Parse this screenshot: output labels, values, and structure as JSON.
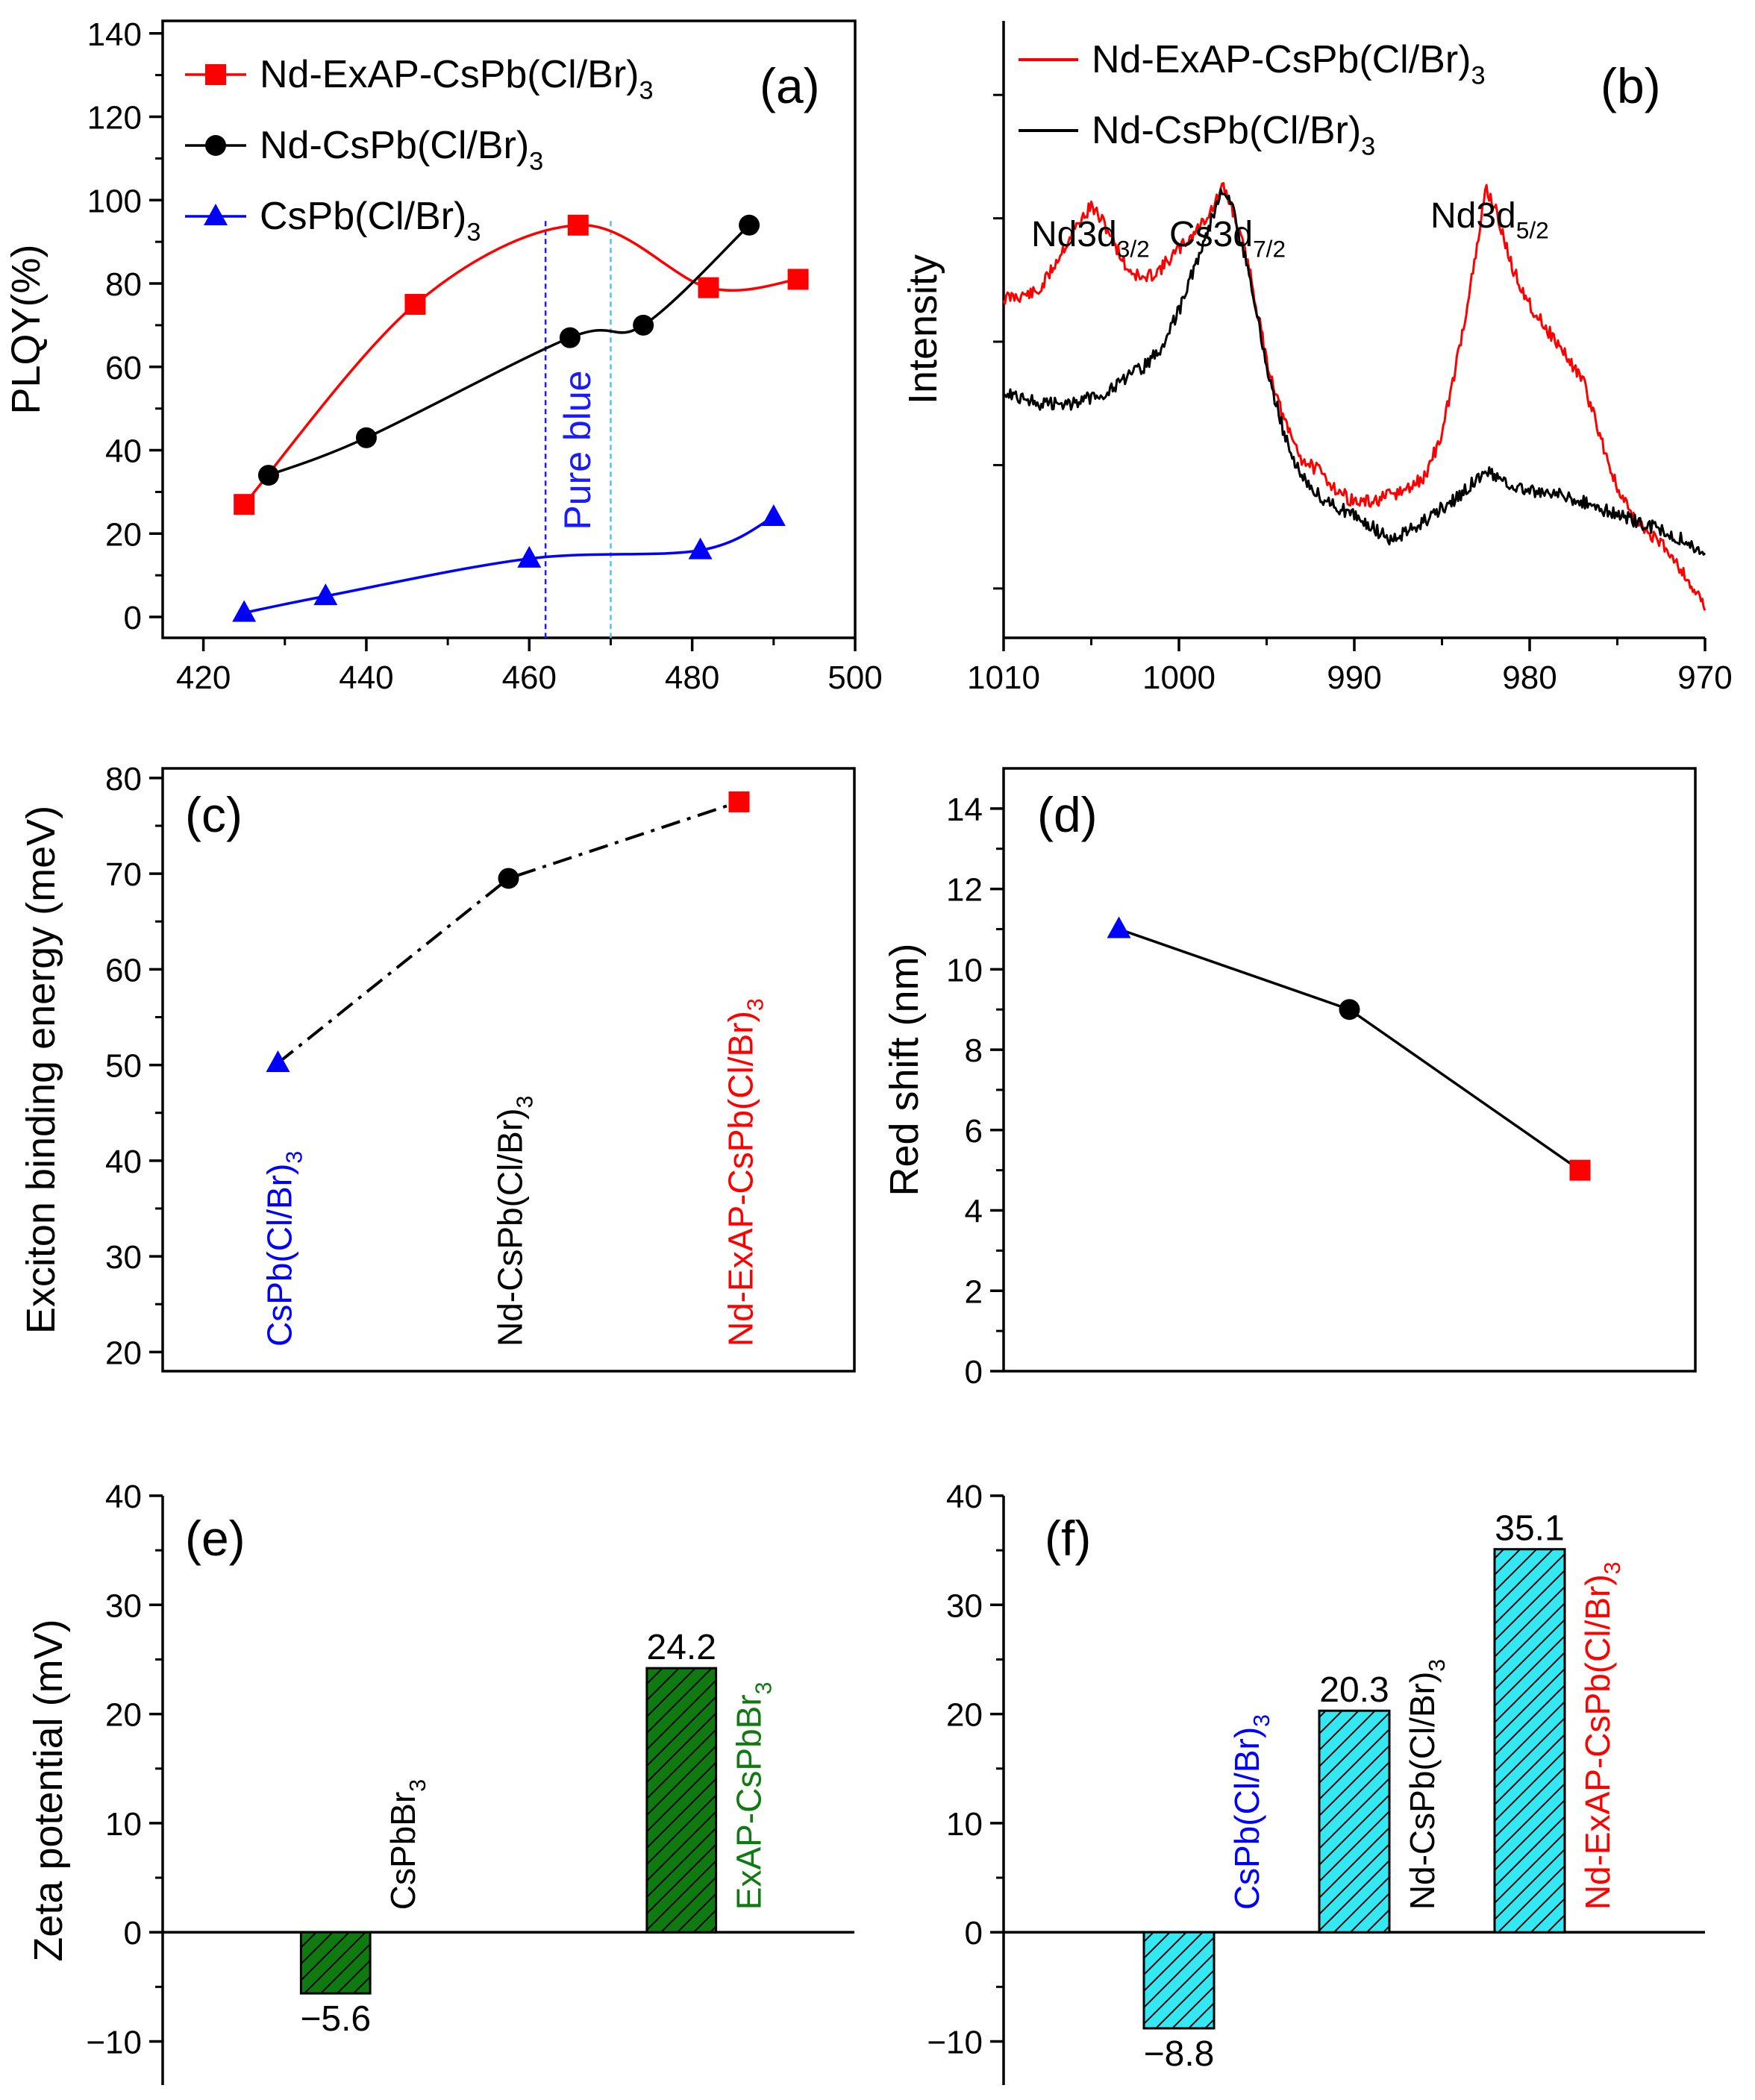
{
  "figure": {
    "panels": [
      "(a)",
      "(b)",
      "(c)",
      "(d)",
      "(e)",
      "(f)"
    ]
  },
  "chart_data": [
    {
      "id": "a",
      "type": "line",
      "panel_label": "(a)",
      "ylabel": "PLQY(%)",
      "xlabel": "",
      "xlim": [
        415,
        500
      ],
      "ylim": [
        -5,
        143
      ],
      "xticks": [
        420,
        440,
        460,
        480,
        500
      ],
      "yticks": [
        0,
        20,
        40,
        60,
        80,
        100,
        120,
        140
      ],
      "legend_position": "top-left",
      "series": [
        {
          "name": "Nd-ExAP-CsPb(Cl/Br)3",
          "color": "#ff0000",
          "marker": "square",
          "x": [
            425,
            446,
            466,
            482,
            493
          ],
          "y": [
            27,
            75,
            94,
            79,
            81
          ]
        },
        {
          "name": "Nd-CsPb(Cl/Br)3",
          "color": "#000000",
          "marker": "circle",
          "x": [
            428,
            440,
            465,
            474,
            487
          ],
          "y": [
            34,
            43,
            67,
            70,
            94
          ]
        },
        {
          "name": "CsPb(Cl/Br)3",
          "color": "#0000ff",
          "marker": "triangle",
          "x": [
            425,
            435,
            460,
            481,
            490
          ],
          "y": [
            1,
            5,
            14,
            16,
            24
          ]
        }
      ],
      "annotations": [
        {
          "text": "Pure blue",
          "color": "#1a1aff"
        }
      ],
      "vlines": [
        {
          "x": 462,
          "color": "#1a1aff"
        },
        {
          "x": 470,
          "color": "#4fc3f7"
        }
      ]
    },
    {
      "id": "b",
      "type": "line",
      "panel_label": "(b)",
      "ylabel": "Intensity",
      "xlabel": "",
      "xlim": [
        1010,
        970
      ],
      "ylim": [
        0,
        1
      ],
      "xticks": [
        1010,
        1000,
        990,
        980,
        970
      ],
      "legend_position": "top-left",
      "series": [
        {
          "name": "Nd-ExAP-CsPb(Cl/Br)3",
          "color": "#ff0000",
          "x": [
            1010,
            1008,
            1006,
            1005,
            1004,
            1003,
            1002,
            1001,
            1000,
            999,
            998,
            997.5,
            997,
            996,
            995,
            994,
            993,
            992,
            991,
            990,
            989,
            988,
            987,
            986,
            985,
            984,
            983,
            982.5,
            982,
            981,
            980,
            979,
            978,
            977,
            976,
            975,
            974,
            972,
            970
          ],
          "y": [
            0.55,
            0.56,
            0.66,
            0.7,
            0.66,
            0.6,
            0.58,
            0.6,
            0.63,
            0.66,
            0.7,
            0.73,
            0.7,
            0.6,
            0.45,
            0.35,
            0.29,
            0.27,
            0.24,
            0.22,
            0.22,
            0.23,
            0.24,
            0.26,
            0.33,
            0.47,
            0.63,
            0.73,
            0.7,
            0.6,
            0.54,
            0.5,
            0.46,
            0.42,
            0.33,
            0.24,
            0.19,
            0.14,
            0.05
          ]
        },
        {
          "name": "Nd-CsPb(Cl/Br)3",
          "color": "#000000",
          "x": [
            1010,
            1008,
            1006,
            1004,
            1002,
            1001,
            1000,
            999,
            998,
            997.5,
            997,
            996,
            995,
            994,
            993,
            992,
            991,
            990,
            989,
            988,
            987,
            986,
            985,
            984,
            983,
            982.5,
            982,
            981,
            980,
            978,
            976,
            974,
            972,
            970
          ],
          "y": [
            0.4,
            0.38,
            0.38,
            0.4,
            0.44,
            0.47,
            0.53,
            0.61,
            0.69,
            0.73,
            0.7,
            0.59,
            0.44,
            0.33,
            0.26,
            0.23,
            0.21,
            0.2,
            0.18,
            0.16,
            0.17,
            0.19,
            0.21,
            0.23,
            0.26,
            0.27,
            0.26,
            0.25,
            0.24,
            0.23,
            0.21,
            0.19,
            0.17,
            0.14
          ]
        }
      ],
      "annotations": [
        {
          "text": "Nd3d",
          "sub": "3/2"
        },
        {
          "text": "Cs3d",
          "sub": "7/2"
        },
        {
          "text": "Nd3d",
          "sub": "5/2"
        }
      ]
    },
    {
      "id": "c",
      "type": "line",
      "panel_label": "(c)",
      "ylabel": "Exciton binding energy (meV)",
      "xlim": [
        0.5,
        3.5
      ],
      "ylim": [
        18,
        81
      ],
      "yticks": [
        20,
        30,
        40,
        50,
        60,
        70,
        80
      ],
      "line_style": "dash-dot",
      "points": [
        {
          "x": 1,
          "y": 50.2,
          "marker": "triangle",
          "color": "#0000ff"
        },
        {
          "x": 2,
          "y": 69.5,
          "marker": "circle",
          "color": "#000000"
        },
        {
          "x": 3,
          "y": 77.5,
          "marker": "square",
          "color": "#ff0000"
        }
      ],
      "category_labels": [
        {
          "text": "CsPb(Cl/Br)",
          "sub": "3",
          "color": "#0000ff"
        },
        {
          "text": "Nd-CsPb(Cl/Br)",
          "sub": "3",
          "color": "#000000"
        },
        {
          "text": "Nd-ExAP-CsPb(Cl/Br)",
          "sub": "3",
          "color": "#ff0000"
        }
      ]
    },
    {
      "id": "d",
      "type": "line",
      "panel_label": "(d)",
      "ylabel": "Red shift (nm)",
      "xlim": [
        0.5,
        3.5
      ],
      "ylim": [
        0,
        15
      ],
      "yticks": [
        0,
        2,
        4,
        6,
        8,
        10,
        12,
        14
      ],
      "points": [
        {
          "x": 1,
          "y": 11,
          "marker": "triangle",
          "color": "#0000ff"
        },
        {
          "x": 2,
          "y": 9,
          "marker": "circle",
          "color": "#000000"
        },
        {
          "x": 3,
          "y": 5,
          "marker": "square",
          "color": "#ff0000"
        }
      ]
    },
    {
      "id": "e",
      "type": "bar",
      "panel_label": "(e)",
      "ylabel": "Zeta potential (mV)",
      "xlim": [
        0,
        4
      ],
      "ylim": [
        -14,
        40
      ],
      "yticks": [
        -10,
        0,
        10,
        20,
        30,
        40
      ],
      "bar_color": "#0f7a0f",
      "bars": [
        {
          "x": 1,
          "value": -5.6,
          "label": "−5.6",
          "category": {
            "text": "CsPbBr",
            "sub": "3",
            "color": "#000000"
          }
        },
        {
          "x": 3,
          "value": 24.2,
          "label": "24.2",
          "category": {
            "text": "ExAP-CsPbBr",
            "sub": "3",
            "color": "#0f7a0f"
          }
        }
      ]
    },
    {
      "id": "f",
      "type": "bar",
      "panel_label": "(f)",
      "ylabel": "",
      "xlim": [
        0,
        4
      ],
      "ylim": [
        -14,
        40
      ],
      "yticks": [
        -10,
        0,
        10,
        20,
        30,
        40
      ],
      "bar_color": "#33e8f2",
      "bars": [
        {
          "x": 1,
          "value": -8.8,
          "label": "−8.8",
          "category": {
            "text": "CsPb(Cl/Br)",
            "sub": "3",
            "color": "#0000ff"
          }
        },
        {
          "x": 2,
          "value": 20.3,
          "label": "20.3",
          "category": {
            "text": "Nd-CsPb(Cl/Br)",
            "sub": "3",
            "color": "#000000"
          }
        },
        {
          "x": 3,
          "value": 35.1,
          "label": "35.1",
          "category": {
            "text": "Nd-ExAP-CsPb(Cl/Br)",
            "sub": "3",
            "color": "#ff0000"
          }
        }
      ]
    }
  ]
}
